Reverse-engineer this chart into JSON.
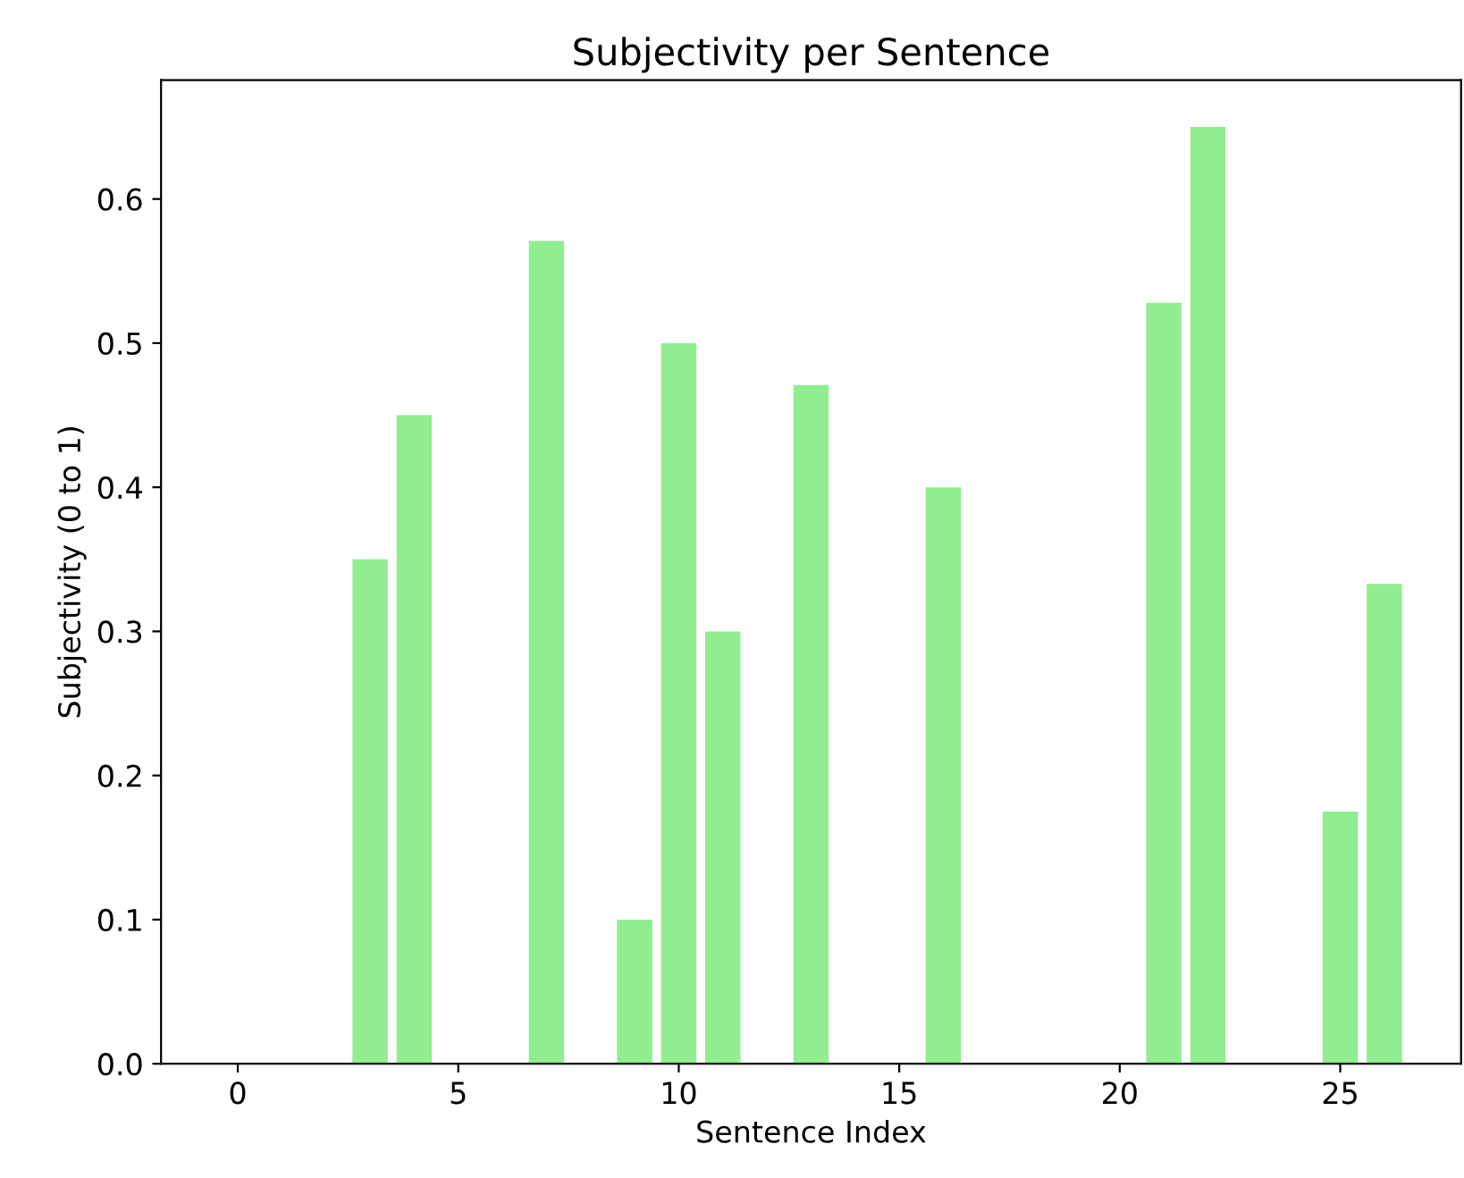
{
  "chart_data": {
    "type": "bar",
    "title": "Subjectivity per Sentence",
    "xlabel": "Sentence Index",
    "ylabel": "Subjectivity (0 to 1)",
    "x": [
      0,
      1,
      2,
      3,
      4,
      5,
      6,
      7,
      8,
      9,
      10,
      11,
      12,
      13,
      14,
      15,
      16,
      17,
      18,
      19,
      20,
      21,
      22,
      23,
      24,
      25,
      26
    ],
    "values": [
      0,
      0,
      0,
      0.35,
      0.45,
      0,
      0,
      0.571,
      0,
      0.1,
      0.5,
      0.3,
      0,
      0.471,
      0,
      0,
      0.4,
      0,
      0,
      0,
      0,
      0.528,
      0.65,
      0,
      0,
      0.175,
      0.333
    ],
    "color": "#90ee90",
    "xlim": [
      -1.74,
      27.74
    ],
    "xticks": [
      0,
      5,
      10,
      15,
      20,
      25
    ],
    "ylim": [
      0,
      0.6825
    ],
    "yticks": [
      {
        "value": 0,
        "label": "0.0"
      },
      0.1,
      0.2,
      0.3,
      0.4,
      0.5,
      0.6
    ],
    "grid": false,
    "legend": false
  }
}
